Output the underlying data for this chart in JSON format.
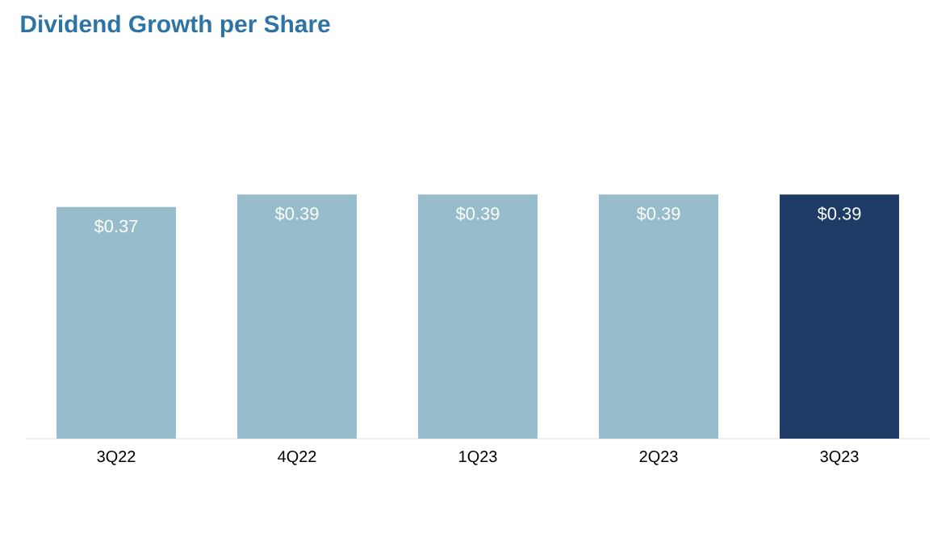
{
  "chart_data": {
    "type": "bar",
    "title": "Dividend Growth per Share",
    "categories": [
      "3Q22",
      "4Q22",
      "1Q23",
      "2Q23",
      "3Q23"
    ],
    "values": [
      0.37,
      0.39,
      0.39,
      0.39,
      0.39
    ],
    "value_labels": [
      "$0.37",
      "$0.39",
      "$0.39",
      "$0.39",
      "$0.39"
    ],
    "colors": [
      "#97bdcc",
      "#97bdcc",
      "#97bdcc",
      "#97bdcc",
      "#1f3c66"
    ],
    "tick_labels": "x"
  }
}
